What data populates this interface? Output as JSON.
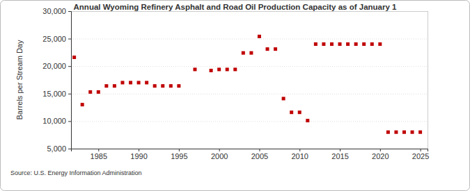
{
  "chart_data": {
    "type": "scatter",
    "title": "Annual Wyoming Refinery Asphalt and Road Oil Production Capacity as of January 1",
    "y_label": "Barrels per Stream Day",
    "source": "Source: U.S. Energy Information Administration",
    "x": [
      1982,
      1983,
      1984,
      1985,
      1986,
      1987,
      1988,
      1989,
      1990,
      1991,
      1992,
      1993,
      1994,
      1995,
      1997,
      1999,
      2000,
      2001,
      2002,
      2003,
      2004,
      2005,
      2006,
      2007,
      2008,
      2009,
      2010,
      2011,
      2012,
      2013,
      2014,
      2015,
      2016,
      2017,
      2018,
      2019,
      2020,
      2021,
      2022,
      2023,
      2024,
      2025
    ],
    "series": [
      {
        "name": "Wyoming",
        "color": "#c00000",
        "marker": "square",
        "values": [
          21600,
          13000,
          15300,
          15300,
          16400,
          16400,
          17000,
          17000,
          17000,
          17000,
          16400,
          16400,
          16400,
          16400,
          19400,
          19200,
          19400,
          19400,
          19400,
          22400,
          22400,
          25400,
          23100,
          23100,
          14100,
          11600,
          11600,
          10100,
          24000,
          24000,
          24000,
          24000,
          24000,
          24000,
          24000,
          24000,
          24000,
          8000,
          8000,
          8000,
          8000,
          8000
        ]
      }
    ],
    "xlim": [
      1981.6,
      2025.9
    ],
    "xticks": [
      1985,
      1990,
      1995,
      2000,
      2005,
      2010,
      2015,
      2020,
      2025
    ],
    "ylim": [
      5000,
      30000
    ],
    "yticks": [
      {
        "value": 5000,
        "label": "5,000"
      },
      {
        "value": 10000,
        "label": "10,000"
      },
      {
        "value": 15000,
        "label": "15,000"
      },
      {
        "value": 20000,
        "label": "20,000"
      },
      {
        "value": 25000,
        "label": "25,000"
      },
      {
        "value": 30000,
        "label": "30,000"
      }
    ],
    "grid": true
  }
}
